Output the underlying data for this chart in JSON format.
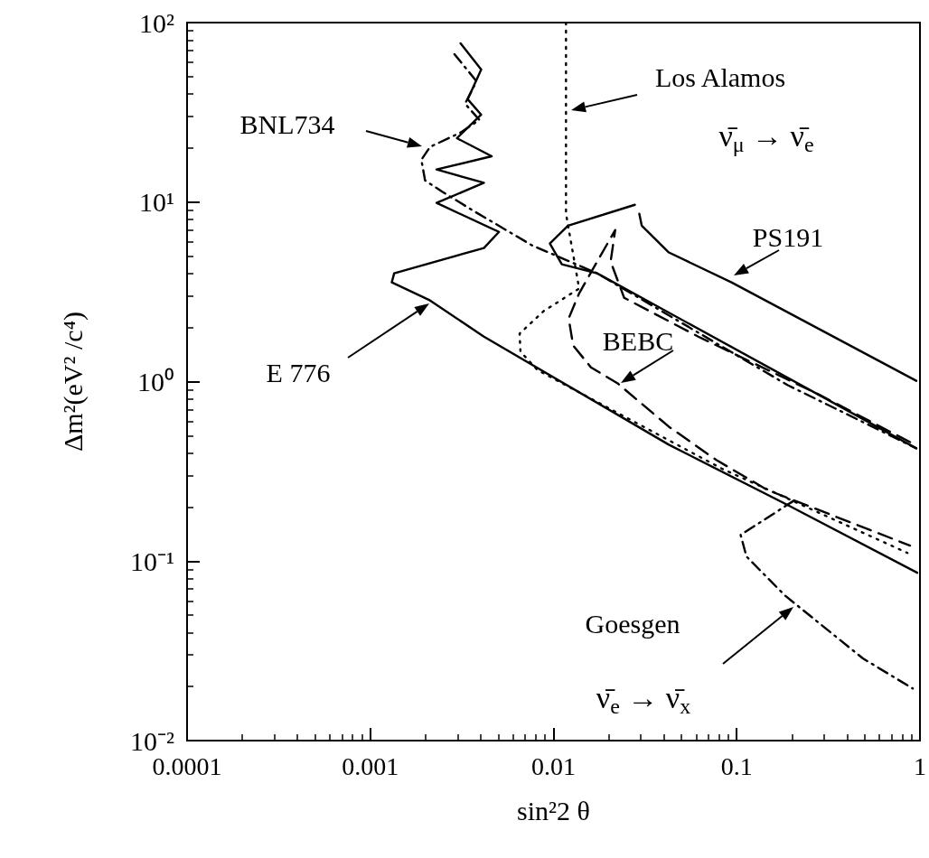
{
  "chart_data": {
    "type": "line",
    "xlabel": "sin²2 θ",
    "ylabel": "Δm²(eV² /c⁴)",
    "log": "xy",
    "marker": "none",
    "xlim": [
      0.0001,
      1
    ],
    "xticks": [
      0.0001,
      0.001,
      0.01,
      0.1,
      1
    ],
    "ylim": [
      0.01,
      100
    ],
    "yticks": [
      {
        "value": 0.01,
        "label": "10⁻²"
      },
      {
        "value": 0.1,
        "label": "10⁻¹"
      },
      {
        "value": 1,
        "label": "10⁰"
      },
      {
        "value": 10,
        "label": "10¹"
      },
      {
        "value": 100,
        "label": "10²"
      }
    ],
    "annotations": [
      "E 776",
      "BNL734",
      "Los Alamos",
      "PS191",
      "BEBC",
      "Goesgen",
      "ν̄$_{μ}$ → ν̄$_{e}$",
      "ν̄$_{e}$ → ν̄$_{x}$"
    ],
    "series": [
      {
        "color": "#000000",
        "line_style": "solid",
        "x": [
          0.00311,
          0.00403,
          0.0034,
          0.00403,
          0.00297,
          0.0046,
          0.0023,
          0.00417,
          0.0023,
          0.00504,
          0.00417,
          0.00135,
          0.00131,
          0.00212,
          0.00417,
          0.0426,
          0.19,
          0.966
        ],
        "values": [
          76.6,
          54.8,
          37.4,
          30.7,
          22.7,
          18.0,
          15.2,
          12.8,
          9.89,
          6.82,
          5.55,
          4.01,
          3.57,
          2.83,
          1.78,
          0.445,
          0.205,
          0.0861
        ]
      },
      {
        "color": "#000000",
        "line_style": "dashdot",
        "x": [
          0.00288,
          0.0038,
          0.00329,
          0.00394,
          0.00311,
          0.00212,
          0.0019,
          0.00199,
          0.00248,
          0.0036,
          0.00764,
          0.0173,
          0.19,
          0.955
        ],
        "values": [
          66.7,
          47.1,
          35.3,
          28.7,
          24.4,
          20.3,
          17.2,
          13.2,
          11.4,
          9.02,
          5.74,
          4.01,
          0.955,
          0.425
        ]
      },
      {
        "color": "#000000",
        "line_style": "dotted",
        "x": [
          0.0117,
          0.0117,
          0.0138,
          0.00884,
          0.00653,
          0.0066,
          0.00817,
          0.0836,
          0.855
        ],
        "values": [
          100,
          8.61,
          3.3,
          2.47,
          1.85,
          1.47,
          1.16,
          0.326,
          0.111
        ]
      },
      {
        "color": "#000000",
        "line_style": "solid",
        "x": [
          0.0278,
          0.012,
          0.00955,
          0.0111,
          0.0173,
          0.955
        ],
        "values": [
          9.66,
          7.39,
          5.88,
          4.5,
          4.01,
          0.425
        ]
      },
      {
        "color": "#000000",
        "line_style": "dashed",
        "x": [
          0.883,
          0.278,
          0.0617,
          0.0243,
          0.0205,
          0.0217,
          0.0173,
          0.0138,
          0.0121,
          0.0128,
          0.016,
          0.0224,
          0.0426,
          0.0773,
          0.147,
          0.883
        ],
        "values": [
          0.46,
          0.851,
          1.78,
          2.93,
          4.66,
          6.98,
          4.66,
          3.1,
          2.25,
          1.59,
          1.2,
          0.977,
          0.561,
          0.366,
          0.249,
          0.122
        ]
      },
      {
        "color": "#000000",
        "line_style": "solid",
        "x": [
          0.0294,
          0.0303,
          0.0426,
          0.0936,
          0.955
        ],
        "values": [
          8.61,
          7.39,
          5.24,
          3.57,
          1.01
        ]
      },
      {
        "color": "#000000",
        "line_style": "dashdot",
        "x": [
          0.205,
          0.105,
          0.113,
          0.183,
          0.488,
          0.914
        ],
        "values": [
          0.217,
          0.14,
          0.106,
          0.0644,
          0.0287,
          0.0195
        ]
      }
    ]
  }
}
